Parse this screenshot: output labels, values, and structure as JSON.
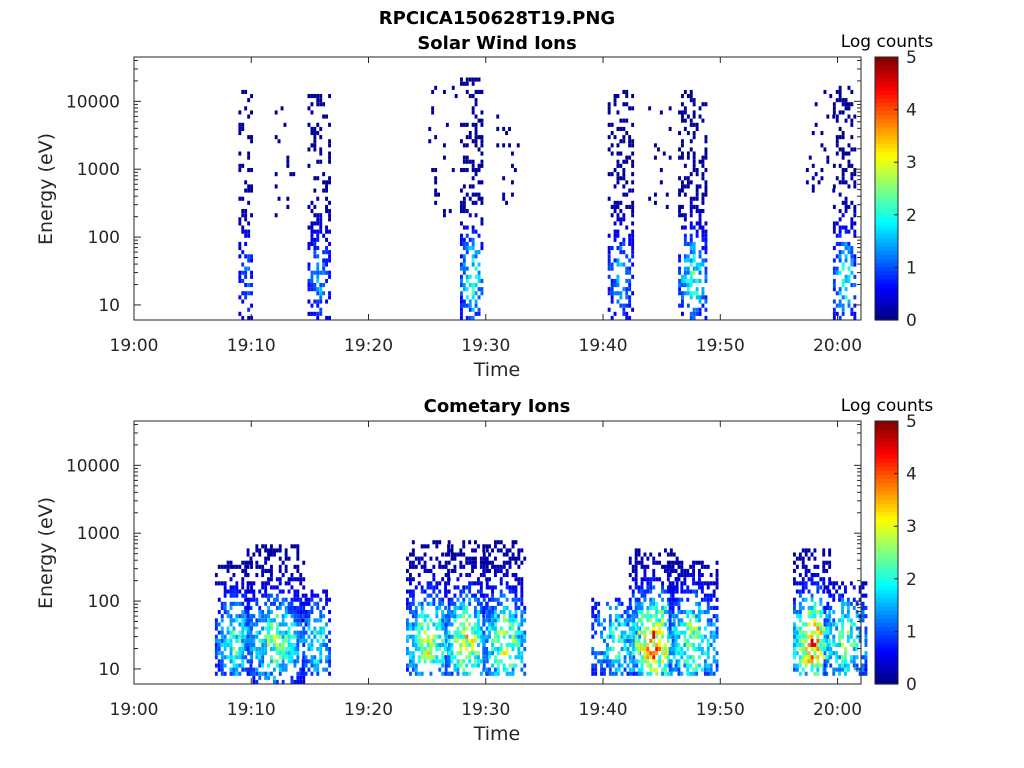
{
  "figure_title": "RPCICA150628T19.PNG",
  "chart_data": [
    {
      "type": "heatmap",
      "title": "Solar Wind Ions",
      "xlabel": "Time",
      "ylabel": "Energy (eV)",
      "x_ticks": [
        "19:00",
        "19:10",
        "19:20",
        "19:30",
        "19:40",
        "19:50",
        "20:00"
      ],
      "x_tick_minutes": [
        0,
        10,
        20,
        30,
        40,
        50,
        60
      ],
      "xlim_minutes": [
        0,
        62
      ],
      "y_scale": "log",
      "y_ticks": [
        "10",
        "100",
        "1000",
        "10000"
      ],
      "y_tick_values": [
        10,
        100,
        1000,
        10000
      ],
      "ylim": [
        6,
        45000
      ],
      "colorbar": {
        "label": "Log counts",
        "ticks": [
          "0",
          "1",
          "2",
          "3",
          "4",
          "5"
        ],
        "range": [
          0,
          5
        ],
        "colormap": "jet"
      },
      "bursts": [
        {
          "t": 9.5,
          "w": 0.6,
          "emin": 6,
          "emax": 15000,
          "peak": 1.2,
          "density": 0.55
        },
        {
          "t": 12.8,
          "w": 0.8,
          "emin": 200,
          "emax": 9000,
          "peak": 0.4,
          "density": 0.15
        },
        {
          "t": 15.7,
          "w": 0.9,
          "emin": 6,
          "emax": 13000,
          "peak": 1.5,
          "density": 0.55
        },
        {
          "t": 26.3,
          "w": 1.2,
          "emin": 200,
          "emax": 20000,
          "peak": 0.4,
          "density": 0.12
        },
        {
          "t": 28.7,
          "w": 0.9,
          "emin": 6,
          "emax": 22000,
          "peak": 2.3,
          "density": 0.6
        },
        {
          "t": 31.8,
          "w": 0.9,
          "emin": 300,
          "emax": 11000,
          "peak": 0.5,
          "density": 0.18
        },
        {
          "t": 41.4,
          "w": 1.0,
          "emin": 6,
          "emax": 15000,
          "peak": 1.6,
          "density": 0.6
        },
        {
          "t": 44.6,
          "w": 1.0,
          "emin": 200,
          "emax": 8000,
          "peak": 0.5,
          "density": 0.15
        },
        {
          "t": 47.6,
          "w": 1.2,
          "emin": 6,
          "emax": 14000,
          "peak": 2.2,
          "density": 0.6
        },
        {
          "t": 58.5,
          "w": 1.2,
          "emin": 300,
          "emax": 14000,
          "peak": 0.5,
          "density": 0.15
        },
        {
          "t": 60.5,
          "w": 0.9,
          "emin": 6,
          "emax": 16000,
          "peak": 2.2,
          "density": 0.6
        }
      ]
    },
    {
      "type": "heatmap",
      "title": "Cometary Ions",
      "xlabel": "Time",
      "ylabel": "Energy (eV)",
      "x_ticks": [
        "19:00",
        "19:10",
        "19:20",
        "19:30",
        "19:40",
        "19:50",
        "20:00"
      ],
      "x_tick_minutes": [
        0,
        10,
        20,
        30,
        40,
        50,
        60
      ],
      "xlim_minutes": [
        0,
        62
      ],
      "y_scale": "log",
      "y_ticks": [
        "10",
        "100",
        "1000",
        "10000"
      ],
      "y_tick_values": [
        10,
        100,
        1000,
        10000
      ],
      "ylim": [
        6,
        45000
      ],
      "colorbar": {
        "label": "Log counts",
        "ticks": [
          "0",
          "1",
          "2",
          "3",
          "4",
          "5"
        ],
        "range": [
          0,
          5
        ],
        "colormap": "jet"
      },
      "bursts": [
        {
          "t": 8.5,
          "w": 1.6,
          "emin": 8,
          "emax": 400,
          "peak": 2.3,
          "density": 0.7
        },
        {
          "t": 12.0,
          "w": 2.4,
          "emin": 6,
          "emax": 700,
          "peak": 2.6,
          "density": 0.7
        },
        {
          "t": 15.5,
          "w": 1.2,
          "emin": 8,
          "emax": 150,
          "peak": 2.2,
          "density": 0.6
        },
        {
          "t": 25.0,
          "w": 1.8,
          "emin": 8,
          "emax": 800,
          "peak": 3.1,
          "density": 0.7
        },
        {
          "t": 28.3,
          "w": 1.8,
          "emin": 8,
          "emax": 800,
          "peak": 3.2,
          "density": 0.7
        },
        {
          "t": 31.5,
          "w": 1.8,
          "emin": 8,
          "emax": 800,
          "peak": 3.0,
          "density": 0.7
        },
        {
          "t": 41.0,
          "w": 2.0,
          "emin": 8,
          "emax": 120,
          "peak": 2.2,
          "density": 0.6
        },
        {
          "t": 44.2,
          "w": 2.0,
          "emin": 8,
          "emax": 600,
          "peak": 4.0,
          "density": 0.75
        },
        {
          "t": 47.6,
          "w": 2.0,
          "emin": 8,
          "emax": 400,
          "peak": 2.8,
          "density": 0.7
        },
        {
          "t": 57.8,
          "w": 1.6,
          "emin": 8,
          "emax": 600,
          "peak": 4.0,
          "density": 0.75
        },
        {
          "t": 60.6,
          "w": 1.8,
          "emin": 8,
          "emax": 200,
          "peak": 2.6,
          "density": 0.6
        }
      ]
    }
  ]
}
